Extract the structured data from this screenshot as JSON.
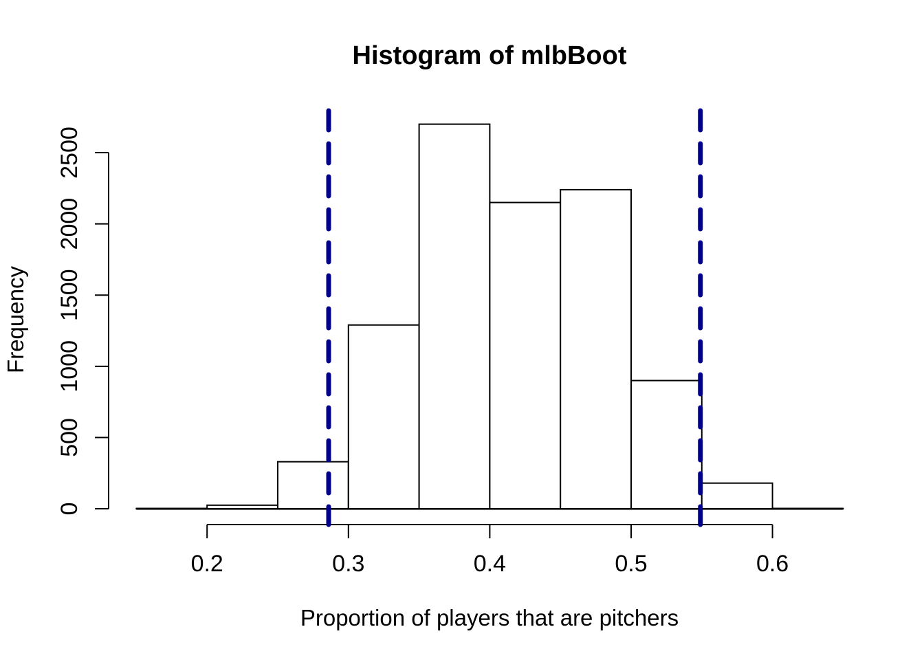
{
  "chart_data": {
    "type": "bar",
    "subtype": "histogram",
    "title": "Histogram of mlbBoot",
    "xlabel": "Proportion of players that are pitchers",
    "ylabel": "Frequency",
    "bin_edges": [
      0.15,
      0.2,
      0.25,
      0.3,
      0.35,
      0.4,
      0.45,
      0.5,
      0.55,
      0.6,
      0.65
    ],
    "counts": [
      2,
      25,
      330,
      1290,
      2700,
      2150,
      2240,
      900,
      180,
      2
    ],
    "x_ticks": [
      0.2,
      0.3,
      0.4,
      0.5,
      0.6
    ],
    "y_ticks": [
      0,
      500,
      1000,
      1500,
      2000,
      2500
    ],
    "xlim": [
      0.15,
      0.65
    ],
    "ylim": [
      0,
      2700
    ],
    "grid": false,
    "legend": null,
    "bar_fill": "#ffffff",
    "bar_stroke": "#000000",
    "axis_color": "#000000",
    "vlines": {
      "values": [
        0.286,
        0.549
      ],
      "style": "dashed",
      "color": "#00008B"
    }
  }
}
